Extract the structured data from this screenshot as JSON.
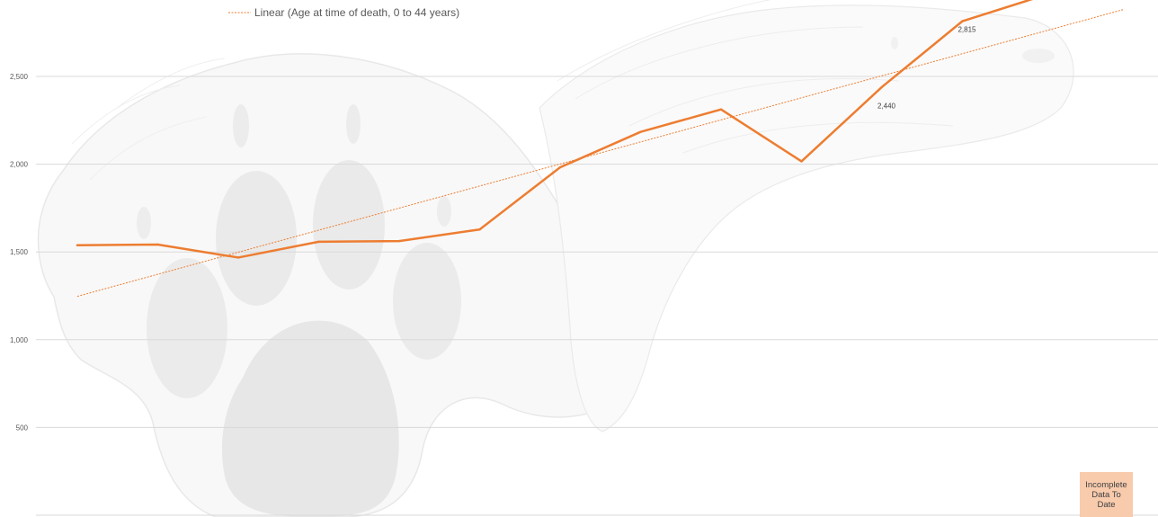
{
  "chart_data": {
    "type": "line",
    "ylim": [
      0,
      2900
    ],
    "yticks": [
      500,
      1000,
      1500,
      2000,
      2500
    ],
    "ytick_labels": [
      "500",
      "1,000",
      "1,500",
      "2,000",
      "2,500"
    ],
    "x": [
      1,
      2,
      3,
      4,
      5,
      6,
      7,
      8,
      9,
      10,
      11,
      12,
      13
    ],
    "series": [
      {
        "values": [
          1538,
          1542,
          1468,
          1558,
          1562,
          1628,
          1982,
          2184,
          2312,
          2016,
          2440,
          2815,
          2960
        ],
        "data_labels": [
          {
            "index": 10,
            "text": "2,440"
          },
          {
            "index": 11,
            "text": "2,815"
          }
        ]
      }
    ],
    "trendline": {
      "name": "Linear (Age at time of death, 0 to 44 years)",
      "type": "linear",
      "start": {
        "x": 1,
        "y": 1247
      },
      "end": {
        "x": 14,
        "y": 2881
      }
    },
    "legend": {
      "entries": [
        "Linear (Age at time of death, 0 to 44 years)"
      ],
      "position": "top"
    },
    "grid": true,
    "line_color": "#ed7d31",
    "gridline_color": "#d9d9d9"
  },
  "annotation": {
    "text": "Incomplete Data To Date",
    "background": "#f8cbad"
  },
  "background_artwork": "wolf-paw-sketch"
}
